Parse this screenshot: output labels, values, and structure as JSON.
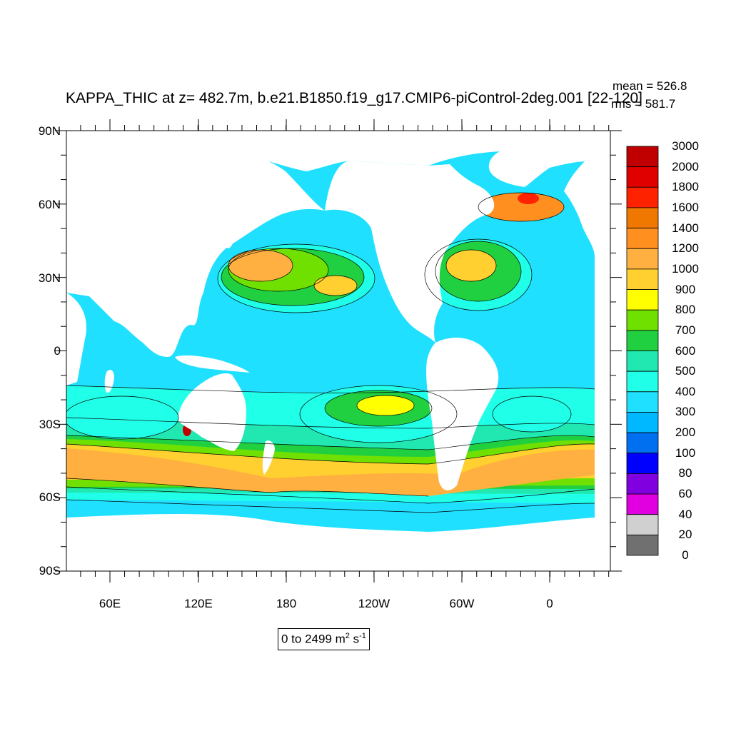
{
  "title": "KAPPA_THIC at z= 482.7m, b.e21.B1850.f19_g17.CMIP6-piControl-2deg.001 [22-120]",
  "stats": {
    "mean": "mean = 526.8",
    "rms": "rms = 581.7"
  },
  "axes": {
    "y_ticks": [
      "90N",
      "60N",
      "30N",
      "0",
      "30S",
      "60S",
      "90S"
    ],
    "x_ticks": [
      "60E",
      "120E",
      "180",
      "120W",
      "60W",
      "0"
    ]
  },
  "colorbar": {
    "labels": [
      "3000",
      "2000",
      "1800",
      "1600",
      "1400",
      "1200",
      "1000",
      "900",
      "800",
      "700",
      "600",
      "500",
      "400",
      "300",
      "200",
      "100",
      "80",
      "60",
      "40",
      "20",
      "0"
    ],
    "colors": [
      "#c00000",
      "#e00000",
      "#ff2200",
      "#f07800",
      "#ff9020",
      "#ffb040",
      "#ffd030",
      "#ffff00",
      "#70e000",
      "#20d040",
      "#20e8b0",
      "#20ffe8",
      "#20e0ff",
      "#00b8ff",
      "#0070f0",
      "#0000ff",
      "#8000e0",
      "#e000e0",
      "#d0d0d0",
      "#707070"
    ]
  },
  "units": {
    "prefix": "0 to 2499 m",
    "exp1": "2",
    "mid": " s",
    "exp2": "-1"
  },
  "map_colors": {
    "ocean_base": "#20e0ff",
    "land": "#ffffff",
    "c500": "#20ffe8",
    "c600": "#20e8b0",
    "c700": "#20d040",
    "c800": "#70e000",
    "c1000": "#ffd030",
    "c1200": "#ffb040",
    "c1400": "#ff9020",
    "c1600": "#f07800",
    "c1800": "#ff2200"
  }
}
